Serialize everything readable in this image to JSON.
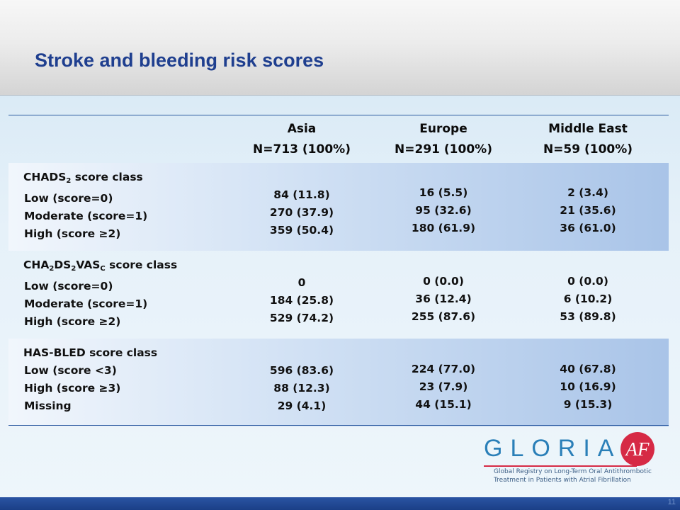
{
  "slide": {
    "title": "Stroke and bleeding risk scores",
    "page_number": "11"
  },
  "columns": [
    {
      "name": "Asia",
      "n": "N=713 (100%)"
    },
    {
      "name": "Europe",
      "n": "N=291 (100%)"
    },
    {
      "name": "Middle East",
      "n": "N=59 (100%)"
    }
  ],
  "sections": [
    {
      "title_parts": [
        "CHADS",
        "2",
        " score class"
      ],
      "rows": [
        "Low (score=0)",
        "Moderate (score=1)",
        "High (score ≥2)"
      ],
      "values": [
        [
          "84 (11.8)",
          "270 (37.9)",
          "359 (50.4)"
        ],
        [
          "16 (5.5)",
          "95 (32.6)",
          "180 (61.9)"
        ],
        [
          "2 (3.4)",
          "21 (35.6)",
          "36 (61.0)"
        ]
      ]
    },
    {
      "title_parts": [
        "CHA",
        "2",
        "DS",
        "2",
        "VAS",
        "C",
        " score class"
      ],
      "rows": [
        "Low (score=0)",
        "Moderate (score=1)",
        "High (score ≥2)"
      ],
      "values": [
        [
          "0",
          "184 (25.8)",
          "529 (74.2)"
        ],
        [
          "0 (0.0)",
          "36 (12.4)",
          "255 (87.6)"
        ],
        [
          "0 (0.0)",
          "6 (10.2)",
          "53 (89.8)"
        ]
      ]
    },
    {
      "title_parts": [
        "HAS-BLED score class"
      ],
      "rows": [
        "Low (score <3)",
        "High (score ≥3)",
        "Missing"
      ],
      "values": [
        [
          "596 (83.6)",
          "88 (12.3)",
          "29 (4.1)"
        ],
        [
          "224 (77.0)",
          "23 (7.9)",
          "44 (15.1)"
        ],
        [
          "40 (67.8)",
          "10 (16.9)",
          "9 (15.3)"
        ]
      ]
    }
  ],
  "logo": {
    "letters": "GLORIA",
    "badge": "AF",
    "tagline_1": "Global Registry on Long-Term Oral Antithrombotic",
    "tagline_2": "Treatment in Patients with Atrial Fibrillation"
  },
  "colors": {
    "title": "#1f3f8f",
    "footer": "#1b3f87",
    "logo_blue": "#2a7fb8",
    "logo_red": "#d62a45"
  }
}
